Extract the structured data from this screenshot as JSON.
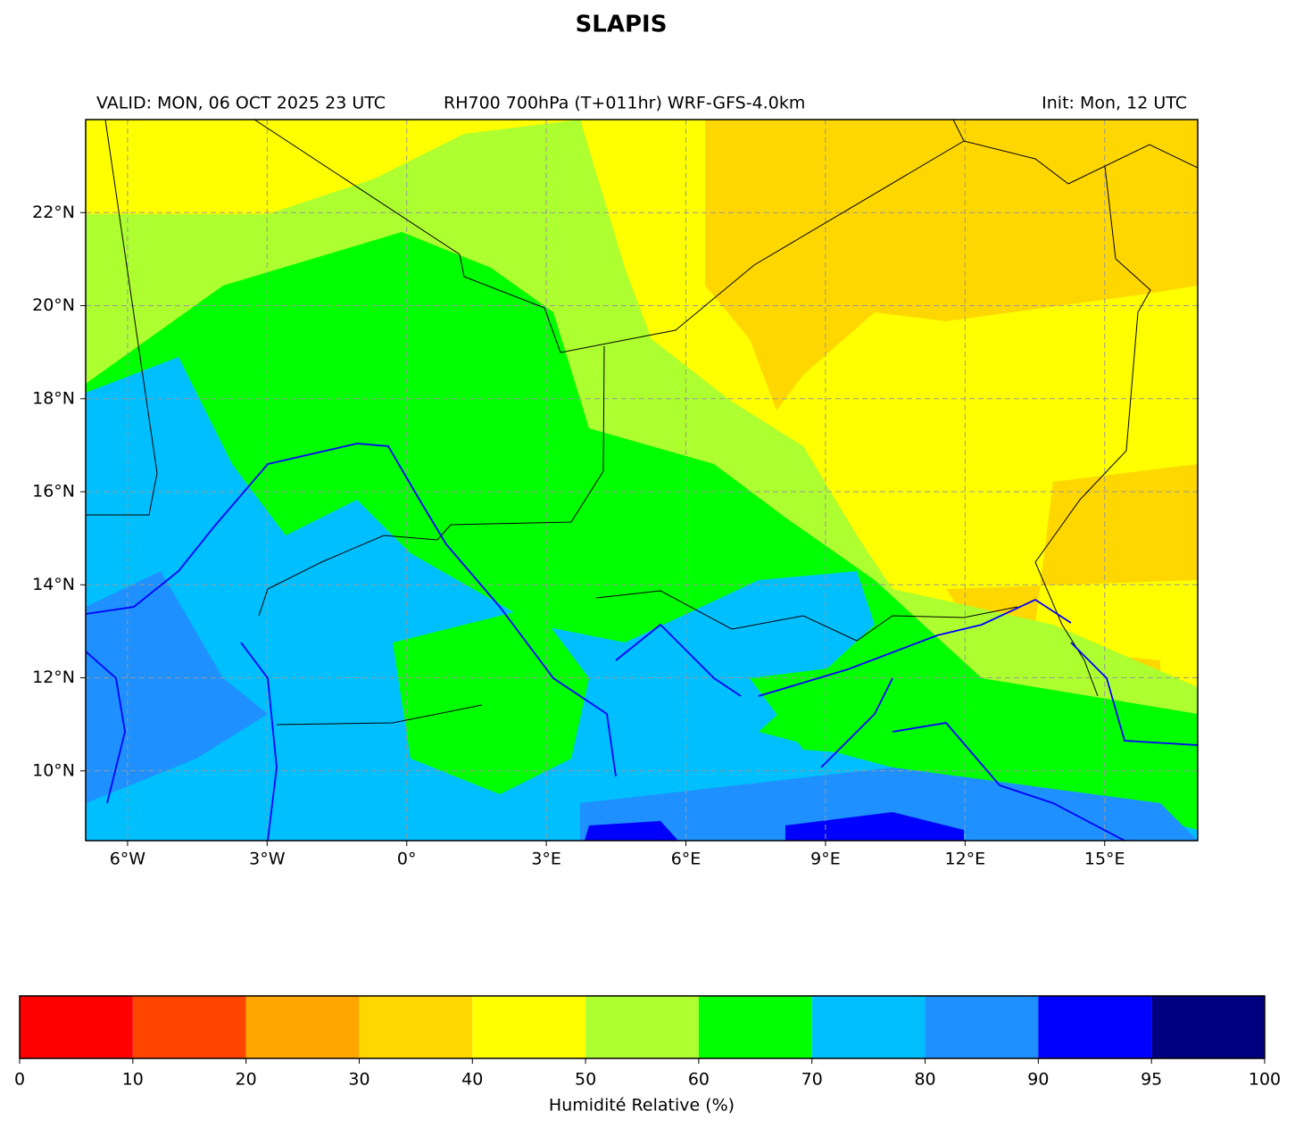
{
  "title": "SLAPIS",
  "header": {
    "valid": "VALID: MON, 06 OCT 2025 23 UTC",
    "product": "RH700 700hPa (T+011hr) WRF-GFS-4.0km",
    "init": "Init: Mon, 12 UTC"
  },
  "map": {
    "lonlim": [
      -6.9,
      17
    ],
    "latlim": [
      8.5,
      24
    ],
    "grid": true,
    "lon_ticks": [
      {
        "value": -6,
        "label": "6°W"
      },
      {
        "value": -3,
        "label": "3°W"
      },
      {
        "value": 0,
        "label": "0°"
      },
      {
        "value": 3,
        "label": "3°E"
      },
      {
        "value": 6,
        "label": "6°E"
      },
      {
        "value": 9,
        "label": "9°E"
      },
      {
        "value": 12,
        "label": "12°E"
      },
      {
        "value": 15,
        "label": "15°E"
      }
    ],
    "lat_ticks": [
      {
        "value": 10,
        "label": "10°N"
      },
      {
        "value": 12,
        "label": "12°N"
      },
      {
        "value": 14,
        "label": "14°N"
      },
      {
        "value": 16,
        "label": "16°N"
      },
      {
        "value": 18,
        "label": "18°N"
      },
      {
        "value": 20,
        "label": "20°N"
      },
      {
        "value": 22,
        "label": "22°N"
      }
    ]
  },
  "colorbar": {
    "label": "Humidité Relative (%)",
    "ticks": [
      0,
      10,
      20,
      30,
      40,
      50,
      60,
      70,
      80,
      90,
      95,
      100
    ],
    "colors": [
      "#ff0000",
      "#ff4500",
      "#ffa500",
      "#ffd700",
      "#ffff00",
      "#adff2f",
      "#00ff00",
      "#00bfff",
      "#1e90ff",
      "#0000ff",
      "#000080"
    ]
  }
}
